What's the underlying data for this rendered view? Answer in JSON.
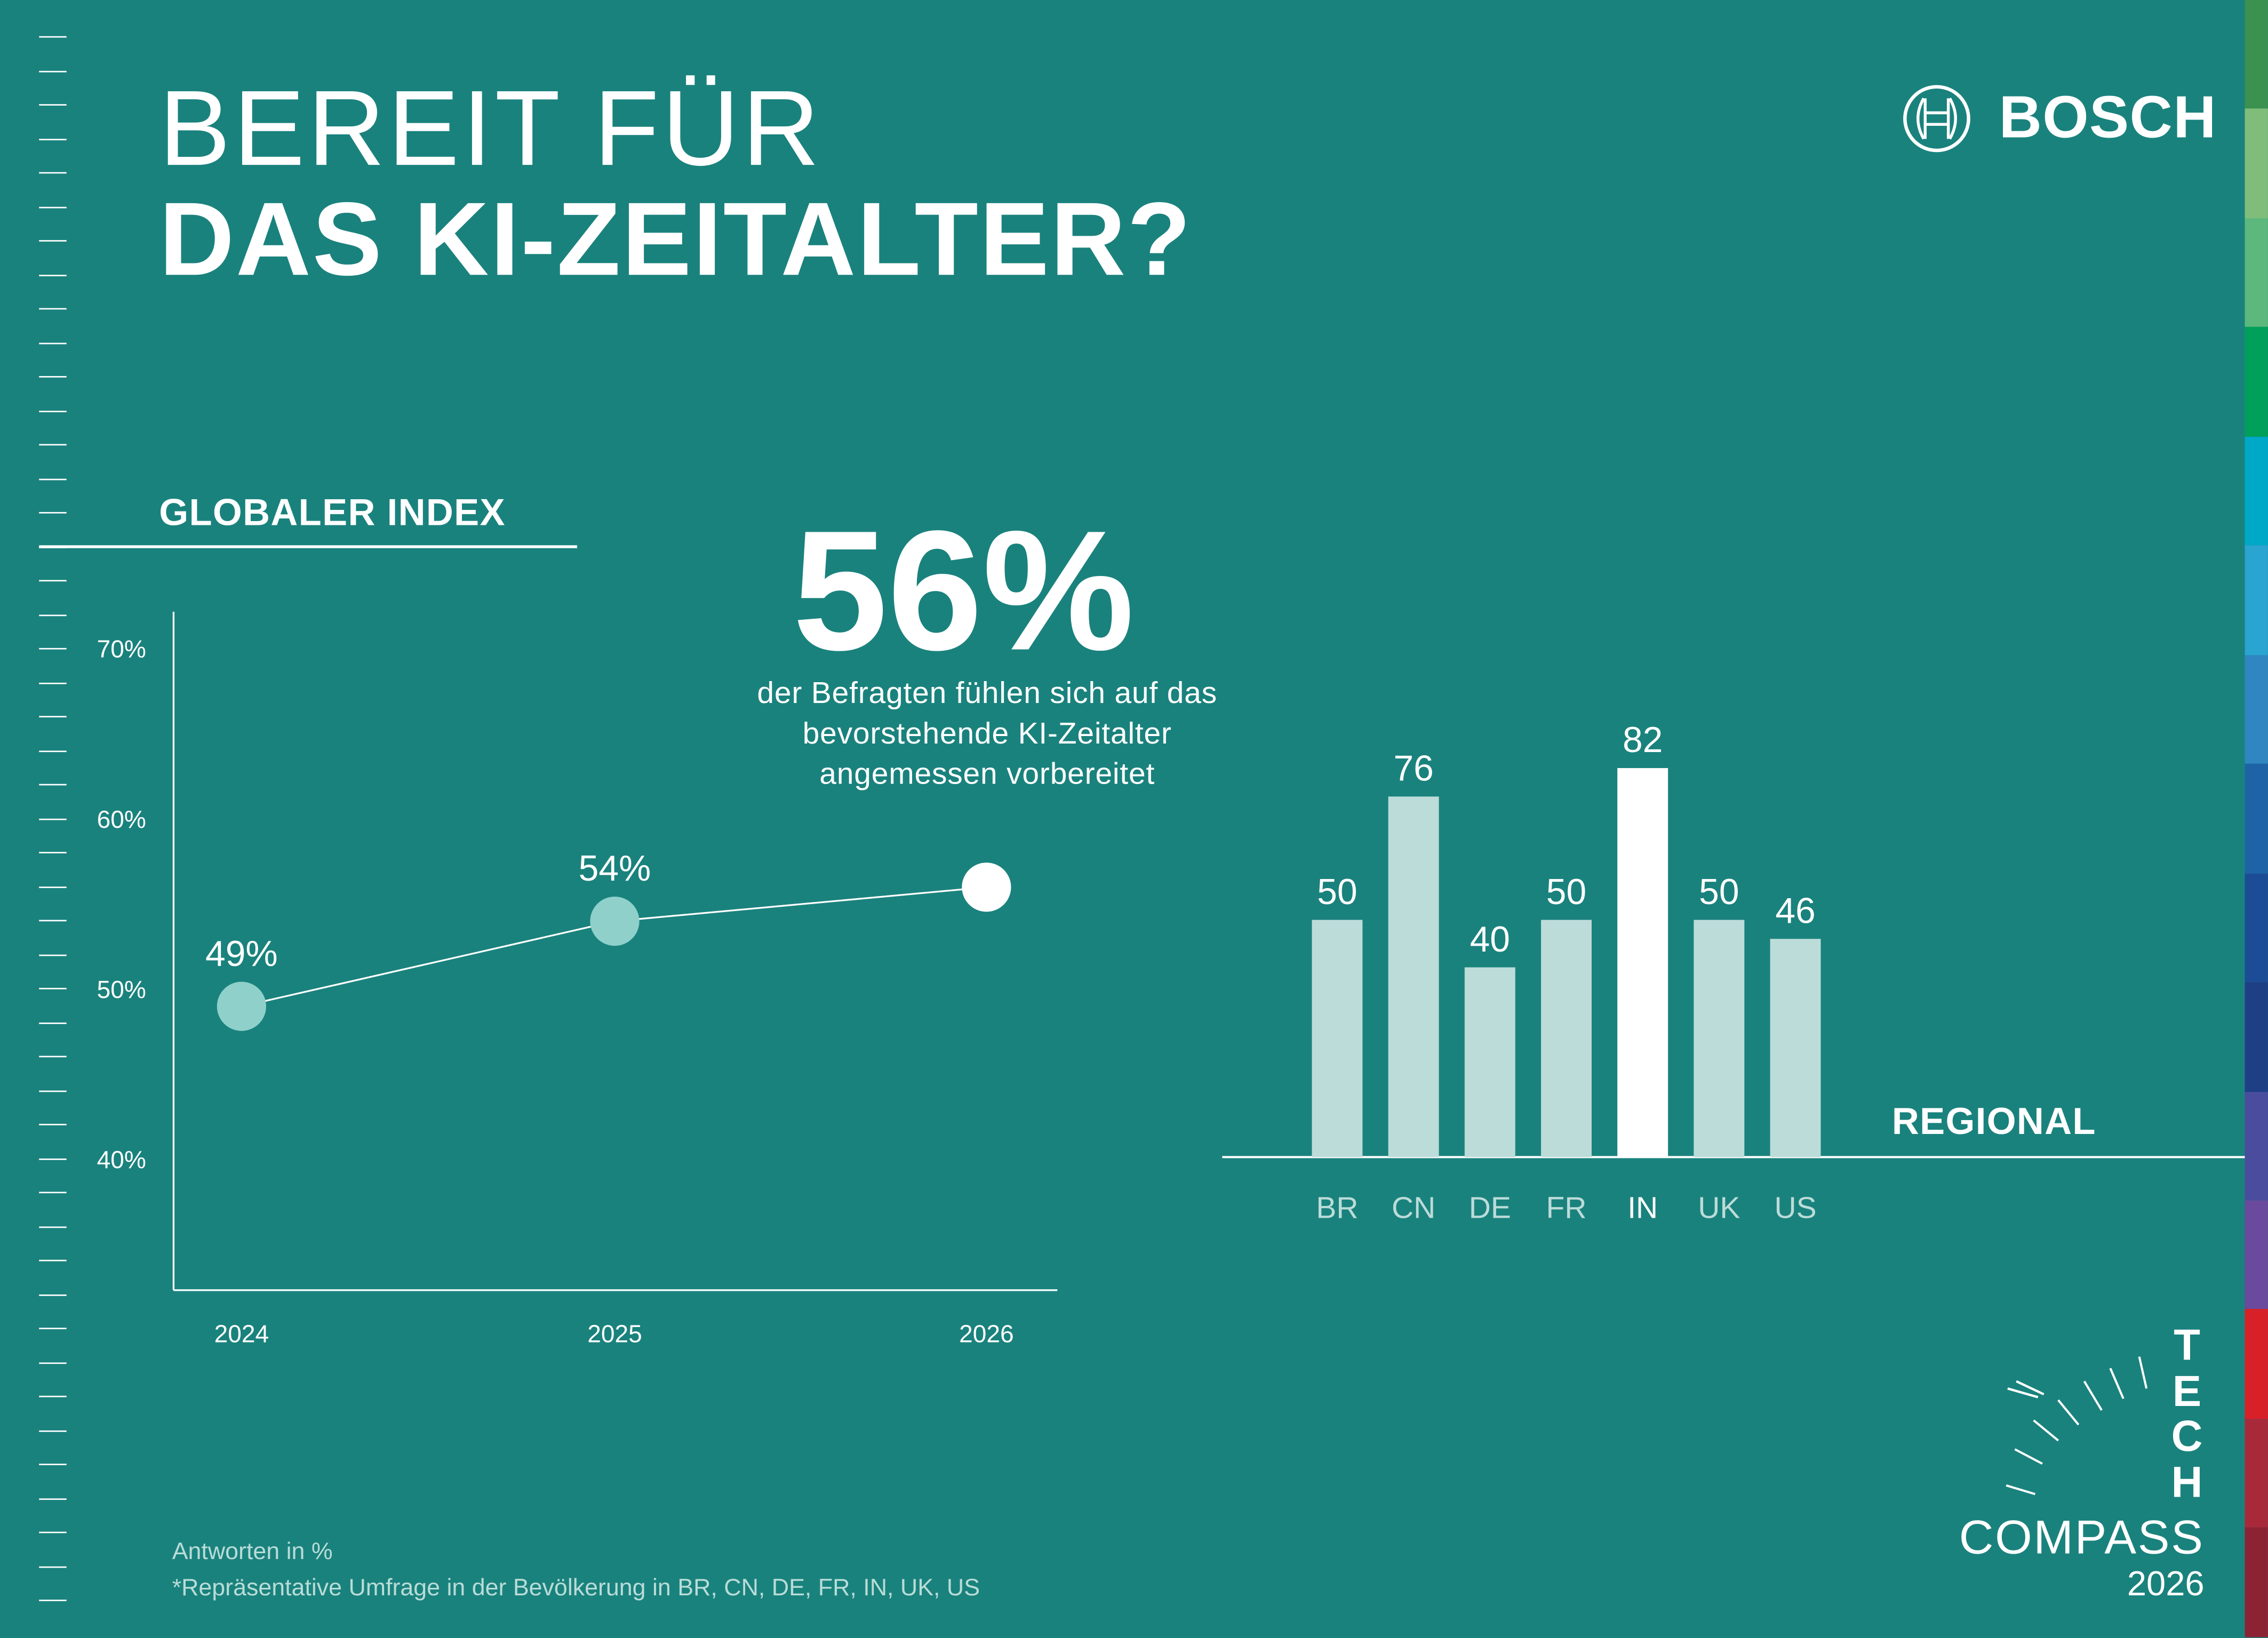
{
  "header": {
    "title_line1": "BEREIT FÜR",
    "title_line2": "DAS KI-ZEITALTER?",
    "brand": "BOSCH"
  },
  "global_section": {
    "label": "GLOBALER INDEX",
    "headline_value": "56%",
    "headline_description": "der Befragten fühlen sich auf das bevorstehende KI-Zeitalter angemessen vorbereitet"
  },
  "regional_section": {
    "label": "REGIONAL"
  },
  "footer": {
    "note1": "Antworten in %",
    "note2": "*Repräsentative Umfrage in der Bevölkerung in BR, CN, DE, FR, IN, UK, US"
  },
  "badge": {
    "word1": "TECH",
    "word2": "COMPASS",
    "year": "2026"
  },
  "colors": {
    "background": "#1a827d",
    "point": "#8fd0cb",
    "bar": "#bcdcd9",
    "highlight": "#ffffff"
  },
  "chart_data": [
    {
      "type": "line",
      "title": "GLOBALER INDEX",
      "x": [
        "2024",
        "2025",
        "2026"
      ],
      "series": [
        {
          "values": [
            49,
            54,
            56
          ]
        }
      ],
      "data_labels": [
        "49%",
        "54%",
        ""
      ],
      "yticks": [
        "40%",
        "50%",
        "60%",
        "70%"
      ],
      "ylim": [
        33,
        72
      ],
      "highlight": "2026",
      "grid": false
    },
    {
      "type": "bar",
      "title": "REGIONAL",
      "categories": [
        "BR",
        "CN",
        "DE",
        "FR",
        "IN",
        "UK",
        "US"
      ],
      "values": [
        50,
        76,
        40,
        50,
        82,
        50,
        46
      ],
      "highlight": "IN",
      "ylim": [
        0,
        85
      ],
      "grid": false
    }
  ]
}
